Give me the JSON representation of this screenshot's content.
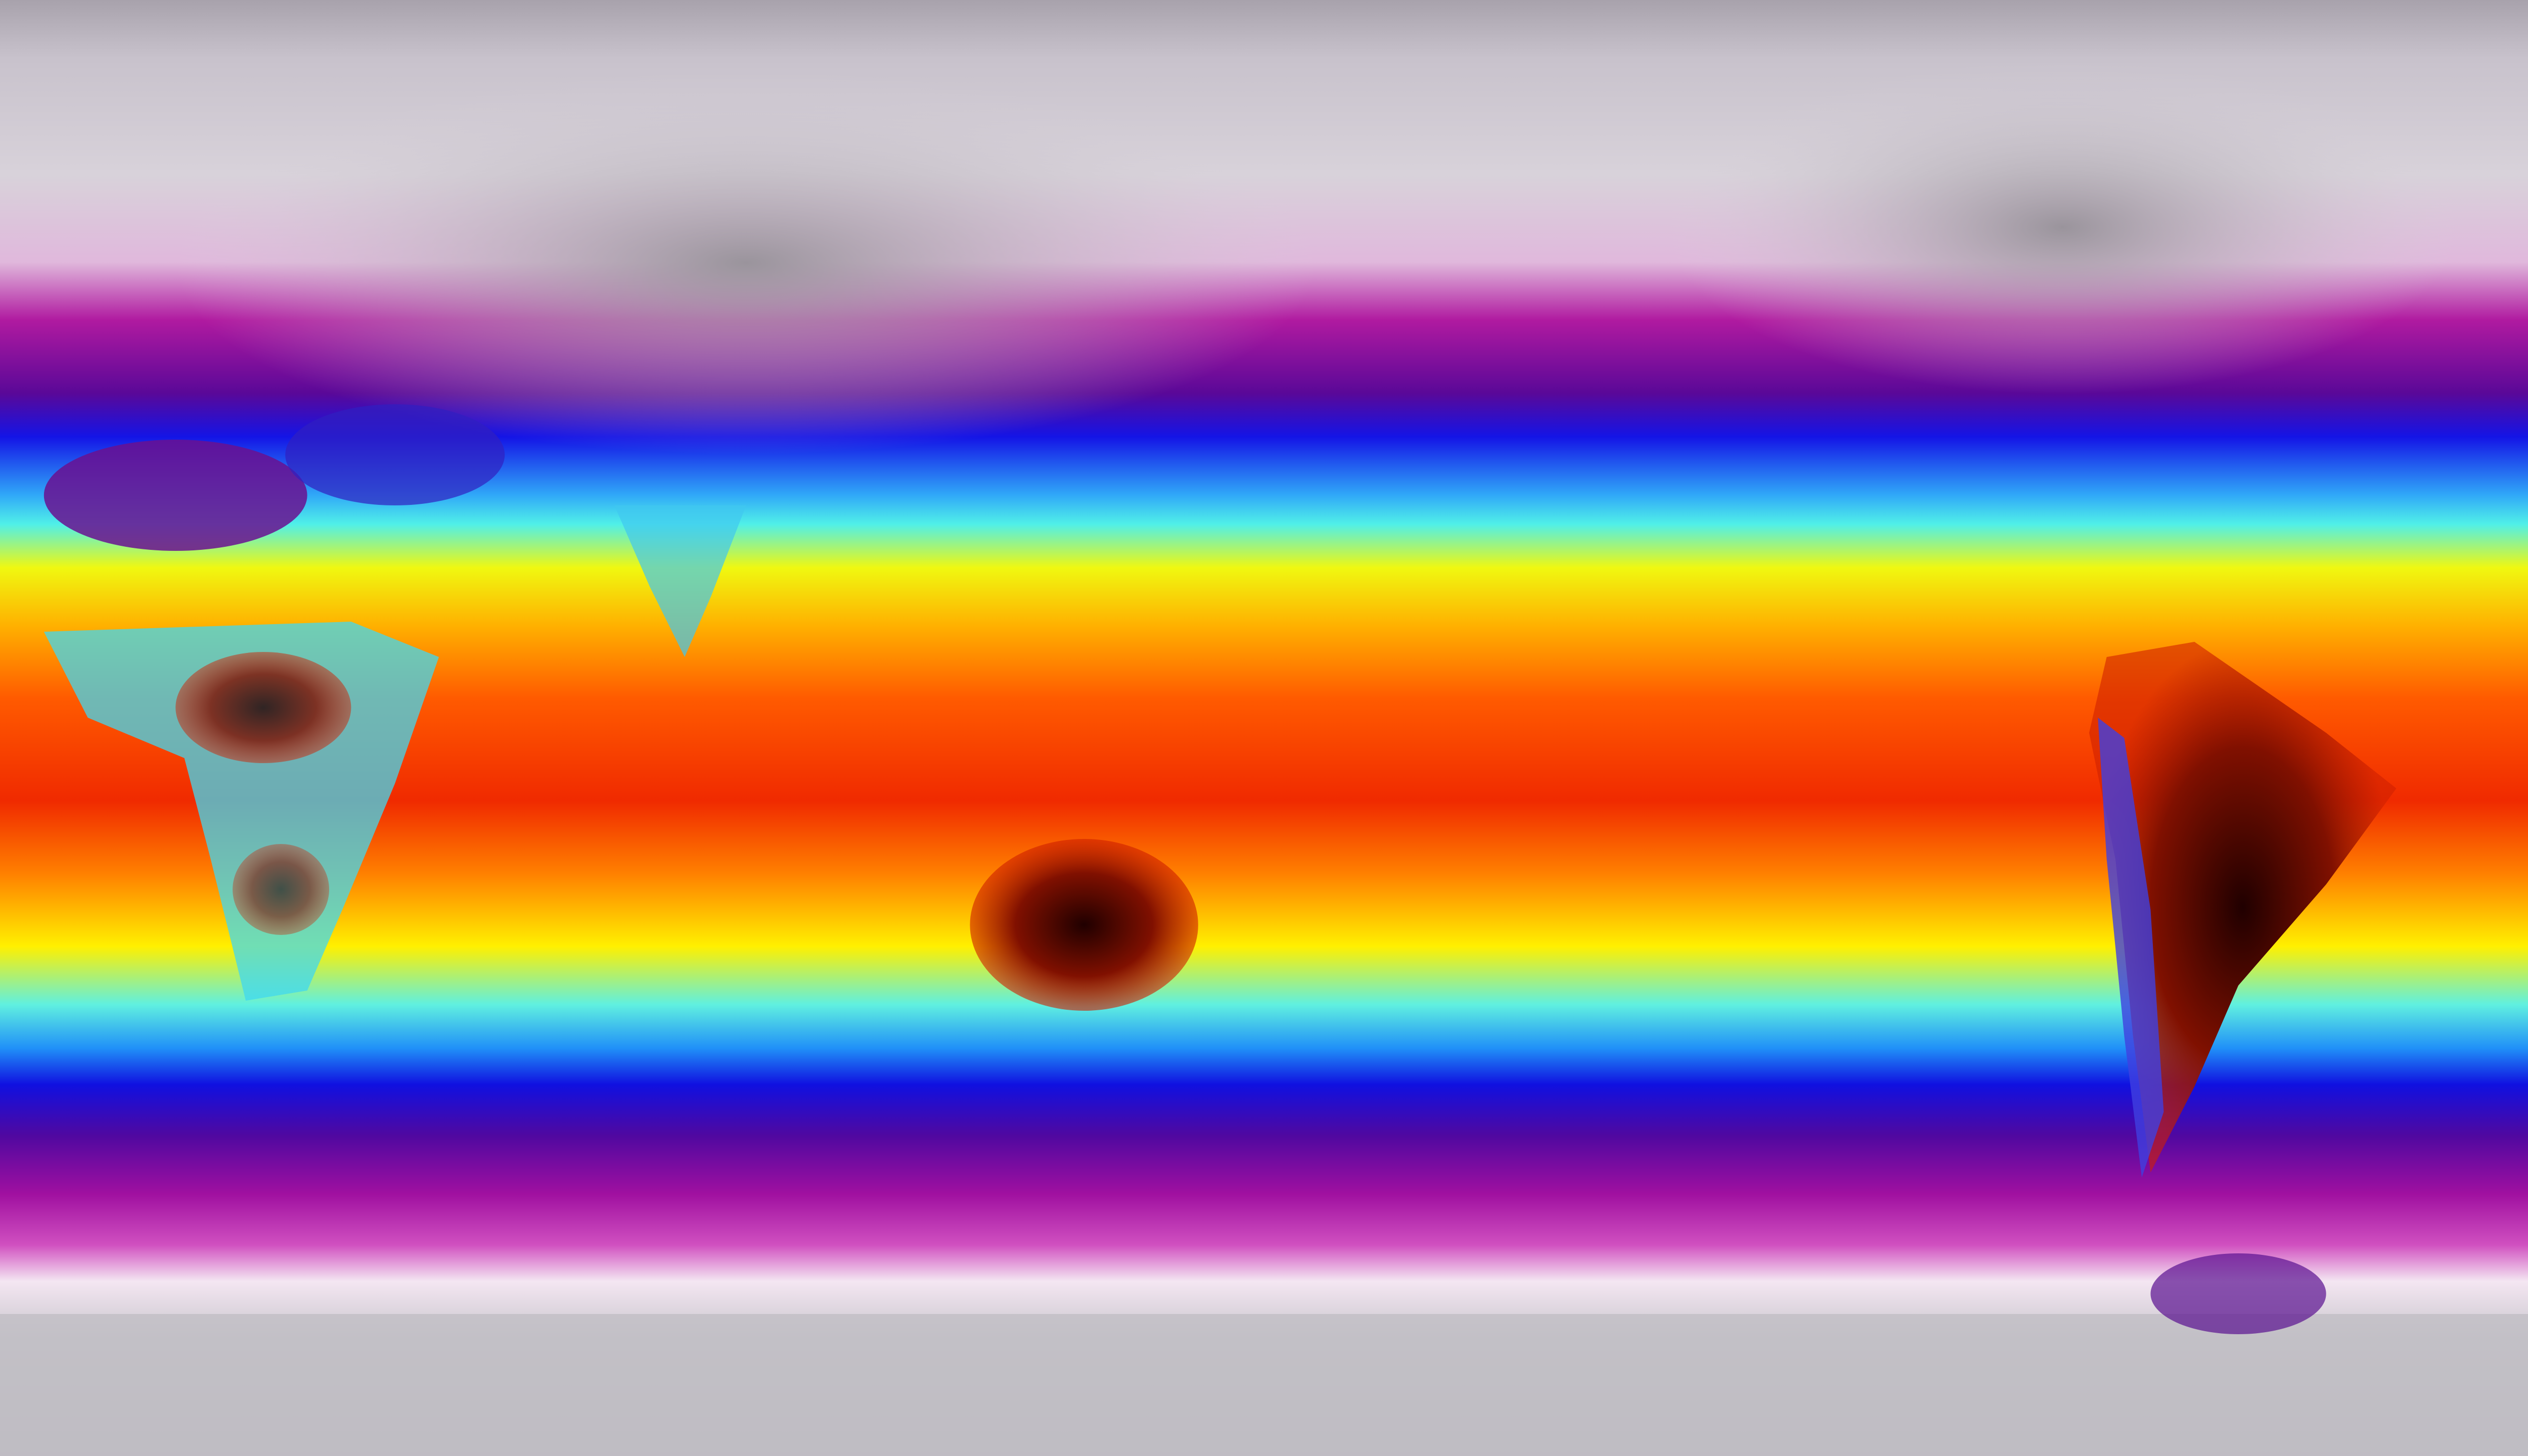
{
  "map": {
    "projection": "equirectangular",
    "colormap": {
      "coldest": "#8e8a92",
      "cold": "#f2e6f0",
      "cool_magenta": "#b0109c",
      "purple": "#5a0896",
      "blue": "#1010e8",
      "cyan": "#40f0f0",
      "yellow": "#f8f800",
      "orange": "#ff9000",
      "red": "#f02000",
      "hottest": "#300000"
    }
  }
}
